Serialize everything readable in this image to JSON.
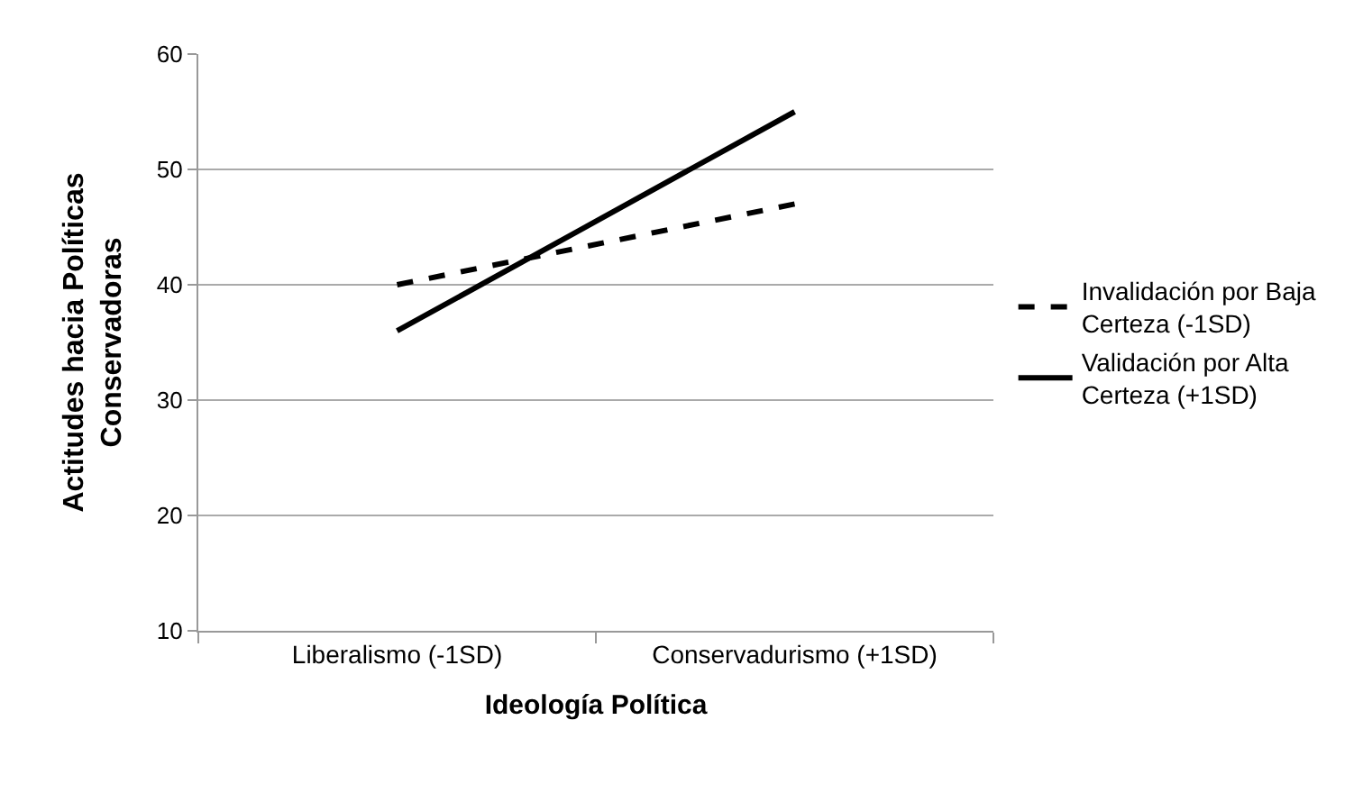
{
  "chart_data": {
    "type": "line",
    "xlabel": "Ideología Política",
    "ylabel": "Actitudes hacia Políticas Conservadoras",
    "categories": [
      "Liberalismo (-1SD)",
      "Conservadurismo (+1SD)"
    ],
    "series": [
      {
        "name": "Invalidación por Baja Certeza (-1SD)",
        "color": "#000000",
        "values": [
          40,
          47
        ],
        "line_style": "dashed"
      },
      {
        "name": "Validación por Alta Certeza (+1SD)",
        "color": "#000000",
        "values": [
          36,
          55
        ],
        "line_style": "solid"
      }
    ],
    "ylim": [
      10,
      60
    ],
    "yticks": [
      10,
      20,
      30,
      40,
      50,
      60
    ],
    "grid": "y",
    "legend": "right",
    "marker": "none"
  }
}
